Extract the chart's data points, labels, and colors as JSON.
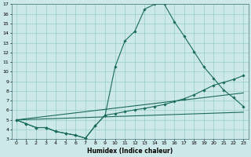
{
  "xlabel": "Humidex (Indice chaleur)",
  "background_color": "#cce8e8",
  "grid_color": "#99cccc",
  "line_color": "#1a6b5a",
  "xlim": [
    -0.5,
    23.5
  ],
  "ylim": [
    3,
    17
  ],
  "xticks": [
    0,
    1,
    2,
    3,
    4,
    5,
    6,
    7,
    8,
    9,
    10,
    11,
    12,
    13,
    14,
    15,
    16,
    17,
    18,
    19,
    20,
    21,
    22,
    23
  ],
  "yticks": [
    3,
    4,
    5,
    6,
    7,
    8,
    9,
    10,
    11,
    12,
    13,
    14,
    15,
    16,
    17
  ],
  "line1_x": [
    0,
    1,
    2,
    3,
    4,
    5,
    6,
    7,
    8,
    9,
    10,
    11,
    12,
    13,
    14,
    15,
    16,
    17,
    18,
    19,
    20,
    21,
    22,
    23
  ],
  "line1_y": [
    5.0,
    4.6,
    4.2,
    4.2,
    3.8,
    3.6,
    3.4,
    3.1,
    4.4,
    5.5,
    10.5,
    13.2,
    14.2,
    16.5,
    17.0,
    17.0,
    15.2,
    13.7,
    12.1,
    10.5,
    9.3,
    8.1,
    7.3,
    6.4
  ],
  "line2_x": [
    0,
    1,
    2,
    3,
    4,
    5,
    6,
    7,
    8,
    9,
    10,
    11,
    12,
    13,
    14,
    15,
    16,
    17,
    18,
    19,
    20,
    21,
    22,
    23
  ],
  "line2_y": [
    5.0,
    4.6,
    4.2,
    4.2,
    3.8,
    3.6,
    3.4,
    3.1,
    4.4,
    5.5,
    5.65,
    5.85,
    6.05,
    6.2,
    6.4,
    6.6,
    6.9,
    7.2,
    7.6,
    8.1,
    8.6,
    8.9,
    9.2,
    9.6
  ],
  "line3_x": [
    0,
    23
  ],
  "line3_y": [
    5.0,
    7.8
  ],
  "line4_x": [
    0,
    23
  ],
  "line4_y": [
    5.0,
    5.8
  ]
}
